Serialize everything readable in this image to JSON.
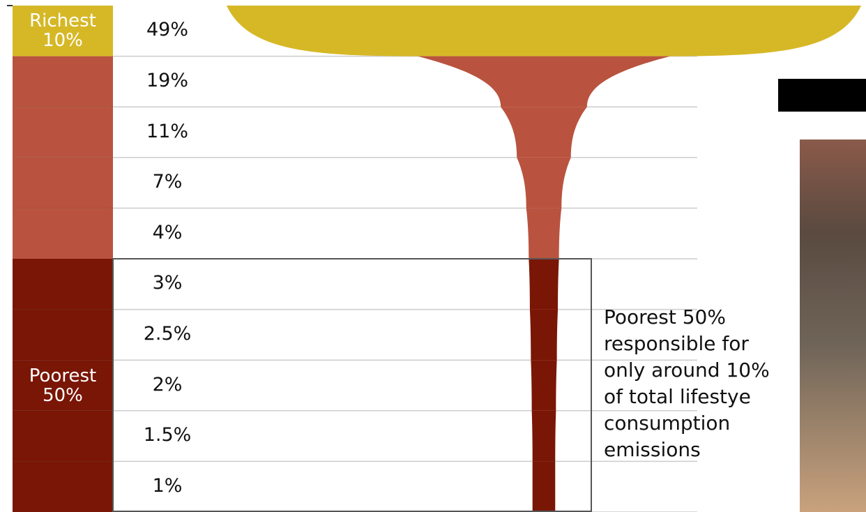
{
  "chart_data": {
    "type": "funnel",
    "groups": [
      {
        "name": "Richest 10%",
        "color": "#d6b826",
        "values": [
          49
        ],
        "value_labels": [
          "49%"
        ]
      },
      {
        "color": "#b9533f",
        "values": [
          19,
          11,
          7,
          4
        ],
        "value_labels": [
          "19%",
          "11%",
          "7%",
          "4%"
        ]
      },
      {
        "name": "Poorest 50%",
        "color": "#7a1606",
        "values": [
          3,
          2.5,
          2,
          1.5,
          1
        ],
        "value_labels": [
          "3%",
          "2.5%",
          "2%",
          "1.5%",
          "1%"
        ]
      }
    ],
    "annotation": "Poorest 50% responsible for only around 10% of total lifestye consumption emissions"
  }
}
